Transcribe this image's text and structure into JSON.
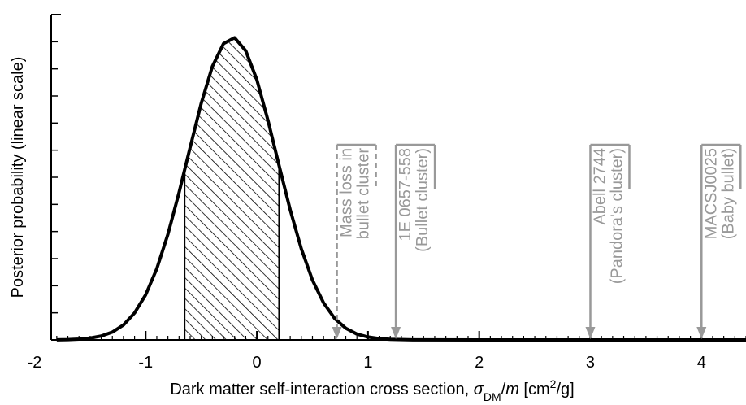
{
  "chart_data": {
    "type": "line",
    "ylabel": "Posterior probability (linear scale)",
    "xlabel_parts": [
      "Dark matter self-interaction cross section, ",
      "σ",
      "DM",
      "/",
      "m",
      " [cm",
      "2",
      "/g]"
    ],
    "xlim": [
      -1.85,
      4.4
    ],
    "xticks": [
      -2,
      -1,
      0,
      1,
      2,
      3,
      4
    ],
    "xminor": 0.1,
    "ylim": [
      0,
      1
    ],
    "x": [
      -1.8,
      -1.7,
      -1.6,
      -1.5,
      -1.4,
      -1.3,
      -1.2,
      -1.1,
      -1.0,
      -0.9,
      -0.8,
      -0.7,
      -0.6,
      -0.5,
      -0.4,
      -0.3,
      -0.2,
      -0.1,
      0,
      0.1,
      0.2,
      0.3,
      0.4,
      0.5,
      0.6,
      0.7,
      0.8,
      0.9,
      1.0,
      1.1,
      1.2,
      1.4,
      2,
      3,
      4,
      4.4
    ],
    "series": [
      {
        "color": "#000000",
        "values": [
          0.0004,
          0.001,
          0.0024,
          0.0056,
          0.012,
          0.024,
          0.046,
          0.083,
          0.139,
          0.219,
          0.325,
          0.453,
          0.592,
          0.728,
          0.841,
          0.911,
          0.929,
          0.889,
          0.8,
          0.675,
          0.536,
          0.4,
          0.28,
          0.184,
          0.114,
          0.066,
          0.036,
          0.018,
          0.009,
          0.004,
          0.002,
          0.0003,
          0,
          0,
          0,
          0
        ]
      }
    ],
    "credible_interval": [
      -0.65,
      0.2
    ],
    "annotations": [
      {
        "x": 0.72,
        "lines": [
          "Mass loss in",
          "bullet cluster"
        ],
        "dashed": true
      },
      {
        "x": 1.25,
        "lines": [
          "1E 0657-558",
          "(Bullet cluster)"
        ],
        "dashed": false
      },
      {
        "x": 3.0,
        "lines": [
          "Abell 2744",
          "(Pandora's cluster)"
        ],
        "dashed": false
      },
      {
        "x": 4.0,
        "lines": [
          "MACSJ0025",
          "(Baby bullet)"
        ],
        "dashed": false
      }
    ],
    "annotation_color": "#999999"
  }
}
